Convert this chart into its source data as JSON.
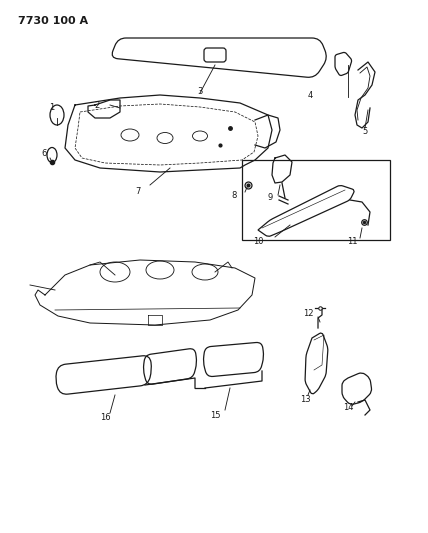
{
  "title": "7730 100 A",
  "bg_color": "#ffffff",
  "line_color": "#1a1a1a",
  "fig_width": 4.28,
  "fig_height": 5.33,
  "dpi": 100
}
